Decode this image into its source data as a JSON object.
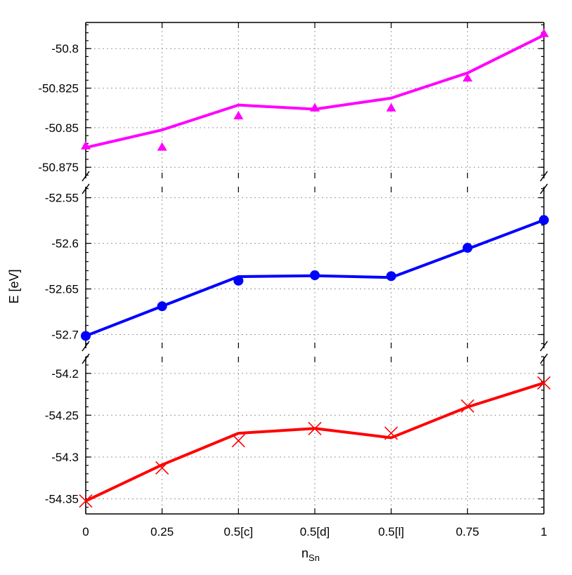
{
  "chart_data": {
    "type": "line",
    "xlabel": "n",
    "xlabel_sub": "Sn",
    "ylabel": "E [eV]",
    "categories": [
      "0",
      "0.25",
      "0.5[c]",
      "0.5[d]",
      "0.5[l]",
      "0.75",
      "1"
    ],
    "grid": true,
    "panels": [
      {
        "color": "#ff00ff",
        "marker": "triangle",
        "ylim": [
          -50.882,
          -50.7835
        ],
        "yticks": [
          -50.875,
          -50.85,
          -50.825,
          -50.8
        ],
        "ytick_labels": [
          "-50.875",
          "-50.85",
          "-50.825",
          "-50.8"
        ],
        "series": [
          {
            "kind": "line",
            "values": [
              -50.8626,
              -50.8514,
              -50.8357,
              -50.8383,
              -50.8313,
              -50.8154,
              -50.7915
            ]
          },
          {
            "kind": "points",
            "values": [
              -50.8615,
              -50.8623,
              -50.8425,
              -50.8375,
              -50.8375,
              -50.8186,
              -50.7905
            ]
          }
        ]
      },
      {
        "color": "#0000ff",
        "marker": "circle",
        "ylim": [
          -52.715,
          -52.538
        ],
        "yticks": [
          -52.7,
          -52.65,
          -52.6,
          -52.55
        ],
        "ytick_labels": [
          "-52.7",
          "-52.65",
          "-52.6",
          "-52.55"
        ],
        "series": [
          {
            "kind": "line",
            "values": [
              -52.7015,
              -52.6689,
              -52.6365,
              -52.6355,
              -52.6375,
              -52.6062,
              -52.5745
            ]
          },
          {
            "kind": "points",
            "values": [
              -52.7015,
              -52.669,
              -52.641,
              -52.635,
              -52.636,
              -52.605,
              -52.5745
            ]
          }
        ]
      },
      {
        "color": "#ff0000",
        "marker": "cross",
        "ylim": [
          -54.368,
          -54.18
        ],
        "yticks": [
          -54.35,
          -54.3,
          -54.25,
          -54.2
        ],
        "ytick_labels": [
          "-54.35",
          "-54.3",
          "-54.25",
          "-54.2"
        ],
        "series": [
          {
            "kind": "line",
            "values": [
              -54.3525,
              -54.3093,
              -54.2716,
              -54.2658,
              -54.2769,
              -54.2402,
              -54.2114
            ]
          },
          {
            "kind": "points",
            "values": [
              -54.3525,
              -54.313,
              -54.2805,
              -54.266,
              -54.2715,
              -54.239,
              -54.2114
            ]
          }
        ]
      }
    ]
  }
}
